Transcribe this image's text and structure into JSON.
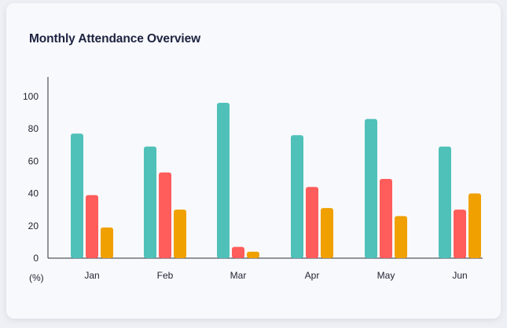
{
  "chart_data": {
    "type": "bar",
    "title": "Monthly Attendance Overview",
    "ylabel": "(%)",
    "xlabel": "",
    "categories": [
      "Jan",
      "Feb",
      "Mar",
      "Apr",
      "May",
      "Jun"
    ],
    "series": [
      {
        "color": "#4fc1b9",
        "values": [
          77,
          69,
          96,
          76,
          86,
          69
        ]
      },
      {
        "color": "#ff5c5c",
        "values": [
          39,
          53,
          7,
          44,
          49,
          30
        ]
      },
      {
        "color": "#f0a000",
        "values": [
          19,
          30,
          4,
          31,
          26,
          40
        ]
      }
    ],
    "ylim": [
      0,
      112
    ],
    "yticks": [
      0,
      20,
      40,
      60,
      80,
      100
    ],
    "grid": false,
    "legend": "none"
  }
}
